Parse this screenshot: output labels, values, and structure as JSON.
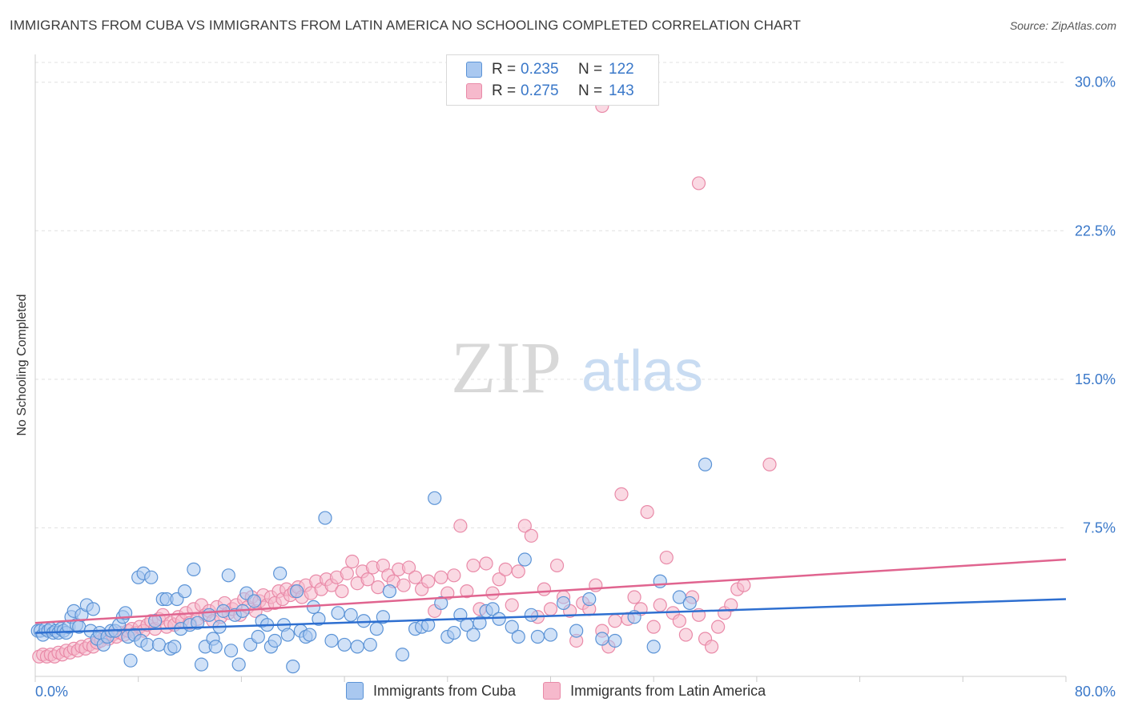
{
  "header": {
    "title": "IMMIGRANTS FROM CUBA VS IMMIGRANTS FROM LATIN AMERICA NO SCHOOLING COMPLETED CORRELATION CHART",
    "source": "Source: ZipAtlas.com"
  },
  "watermark": {
    "zip": "ZIP",
    "atlas": "atlas"
  },
  "legend": {
    "rows": [
      {
        "r_label": "R = ",
        "r_value": "0.235",
        "n_label": "N = ",
        "n_value": "122"
      },
      {
        "r_label": "R = ",
        "r_value": "0.275",
        "n_label": "N = ",
        "n_value": "143"
      }
    ]
  },
  "bottom_legend": {
    "series1": "Immigrants from Cuba",
    "series2": "Immigrants from Latin America"
  },
  "colors": {
    "cuba_fill": "#a9c8f0",
    "cuba_stroke": "#5b93d6",
    "cuba_line": "#2e6fd0",
    "latam_fill": "#f6b9cc",
    "latam_stroke": "#e98aa8",
    "latam_line": "#e0648f",
    "tick_label": "#3a78c9",
    "grid": "#e0e0e0"
  },
  "chart_data": {
    "type": "scatter",
    "title": "IMMIGRANTS FROM CUBA VS IMMIGRANTS FROM LATIN AMERICA NO SCHOOLING COMPLETED CORRELATION CHART",
    "xlabel": "",
    "ylabel": "No Schooling Completed",
    "xlim": [
      0,
      80
    ],
    "ylim": [
      0,
      31
    ],
    "x_tick_labels": [
      "0.0%",
      "80.0%"
    ],
    "y_ticks": [
      7.5,
      15.0,
      22.5,
      30.0
    ],
    "y_tick_labels": [
      "7.5%",
      "15.0%",
      "22.5%",
      "30.0%"
    ],
    "grid": "horizontal dashed",
    "legend_position": "top-center",
    "series": [
      {
        "name": "Immigrants from Cuba",
        "R": 0.235,
        "N": 122,
        "trend": [
          [
            0,
            2.2
          ],
          [
            80,
            3.9
          ]
        ],
        "points": [
          [
            0.2,
            2.3
          ],
          [
            0.4,
            2.3
          ],
          [
            0.6,
            2.1
          ],
          [
            0.8,
            2.4
          ],
          [
            1.0,
            2.3
          ],
          [
            1.2,
            2.4
          ],
          [
            1.4,
            2.2
          ],
          [
            1.6,
            2.3
          ],
          [
            1.8,
            2.2
          ],
          [
            2.0,
            2.4
          ],
          [
            2.2,
            2.3
          ],
          [
            2.4,
            2.2
          ],
          [
            2.6,
            2.5
          ],
          [
            2.8,
            3.0
          ],
          [
            3.0,
            3.3
          ],
          [
            3.2,
            2.6
          ],
          [
            3.4,
            2.5
          ],
          [
            3.6,
            3.1
          ],
          [
            4.0,
            3.6
          ],
          [
            4.3,
            2.3
          ],
          [
            4.5,
            3.4
          ],
          [
            4.8,
            1.9
          ],
          [
            5.0,
            2.2
          ],
          [
            5.3,
            1.6
          ],
          [
            5.6,
            2.0
          ],
          [
            5.9,
            2.3
          ],
          [
            6.2,
            2.3
          ],
          [
            6.5,
            2.6
          ],
          [
            6.8,
            3.0
          ],
          [
            7.0,
            3.2
          ],
          [
            7.2,
            2.0
          ],
          [
            7.4,
            0.8
          ],
          [
            7.7,
            2.1
          ],
          [
            8.0,
            5.0
          ],
          [
            8.2,
            1.8
          ],
          [
            8.4,
            5.2
          ],
          [
            8.7,
            1.6
          ],
          [
            9.0,
            5.0
          ],
          [
            9.3,
            2.8
          ],
          [
            9.6,
            1.6
          ],
          [
            9.9,
            3.9
          ],
          [
            10.2,
            3.9
          ],
          [
            10.5,
            1.4
          ],
          [
            10.8,
            1.5
          ],
          [
            11.0,
            3.9
          ],
          [
            11.3,
            2.4
          ],
          [
            11.6,
            4.3
          ],
          [
            12.0,
            2.6
          ],
          [
            12.3,
            5.4
          ],
          [
            12.6,
            2.7
          ],
          [
            12.9,
            0.6
          ],
          [
            13.2,
            1.5
          ],
          [
            13.5,
            3.1
          ],
          [
            13.8,
            1.9
          ],
          [
            14.0,
            1.5
          ],
          [
            14.3,
            2.5
          ],
          [
            14.6,
            3.3
          ],
          [
            15.0,
            5.1
          ],
          [
            15.2,
            1.3
          ],
          [
            15.5,
            3.1
          ],
          [
            15.8,
            0.6
          ],
          [
            16.1,
            3.3
          ],
          [
            16.4,
            4.2
          ],
          [
            16.7,
            1.6
          ],
          [
            17.0,
            3.8
          ],
          [
            17.3,
            2.0
          ],
          [
            17.6,
            2.8
          ],
          [
            18.0,
            2.6
          ],
          [
            18.3,
            1.5
          ],
          [
            18.6,
            1.8
          ],
          [
            19.0,
            5.2
          ],
          [
            19.3,
            2.6
          ],
          [
            19.6,
            2.1
          ],
          [
            20.0,
            0.5
          ],
          [
            20.3,
            4.3
          ],
          [
            20.6,
            2.3
          ],
          [
            21.0,
            2.0
          ],
          [
            21.3,
            2.1
          ],
          [
            21.6,
            3.5
          ],
          [
            22.0,
            2.9
          ],
          [
            22.5,
            8.0
          ],
          [
            23.0,
            1.8
          ],
          [
            23.5,
            3.2
          ],
          [
            24.0,
            1.6
          ],
          [
            24.5,
            3.1
          ],
          [
            25.0,
            1.5
          ],
          [
            25.5,
            2.8
          ],
          [
            26.0,
            1.6
          ],
          [
            26.5,
            2.4
          ],
          [
            27.0,
            3.0
          ],
          [
            27.5,
            4.3
          ],
          [
            28.5,
            1.1
          ],
          [
            29.5,
            2.4
          ],
          [
            30.0,
            2.5
          ],
          [
            30.5,
            2.6
          ],
          [
            31.0,
            9.0
          ],
          [
            31.5,
            3.7
          ],
          [
            32.0,
            2.0
          ],
          [
            32.5,
            2.2
          ],
          [
            33.0,
            3.1
          ],
          [
            33.5,
            2.6
          ],
          [
            34.0,
            2.1
          ],
          [
            34.5,
            2.7
          ],
          [
            35.0,
            3.3
          ],
          [
            35.5,
            3.4
          ],
          [
            36.0,
            2.9
          ],
          [
            37.0,
            2.5
          ],
          [
            37.5,
            2.0
          ],
          [
            38.0,
            5.9
          ],
          [
            38.5,
            3.1
          ],
          [
            39.0,
            2.0
          ],
          [
            40.0,
            2.1
          ],
          [
            41.0,
            3.7
          ],
          [
            42.0,
            2.3
          ],
          [
            43.0,
            3.9
          ],
          [
            44.0,
            1.9
          ],
          [
            45.0,
            1.8
          ],
          [
            46.5,
            3.0
          ],
          [
            48.0,
            1.5
          ],
          [
            48.5,
            4.8
          ],
          [
            50.0,
            4.0
          ],
          [
            50.8,
            3.7
          ],
          [
            52.0,
            10.7
          ]
        ]
      },
      {
        "name": "Immigrants from Latin America",
        "R": 0.275,
        "N": 143,
        "trend": [
          [
            0,
            2.7
          ],
          [
            80,
            5.9
          ]
        ],
        "points": [
          [
            0.3,
            1.0
          ],
          [
            0.6,
            1.1
          ],
          [
            0.9,
            1.0
          ],
          [
            1.2,
            1.1
          ],
          [
            1.5,
            1.0
          ],
          [
            1.8,
            1.2
          ],
          [
            2.1,
            1.1
          ],
          [
            2.4,
            1.3
          ],
          [
            2.7,
            1.2
          ],
          [
            3.0,
            1.4
          ],
          [
            3.3,
            1.3
          ],
          [
            3.6,
            1.5
          ],
          [
            3.9,
            1.4
          ],
          [
            4.2,
            1.6
          ],
          [
            4.5,
            1.5
          ],
          [
            4.8,
            1.7
          ],
          [
            5.1,
            1.8
          ],
          [
            5.4,
            2.0
          ],
          [
            5.7,
            1.9
          ],
          [
            6.0,
            2.1
          ],
          [
            6.3,
            2.0
          ],
          [
            6.6,
            2.2
          ],
          [
            6.9,
            2.1
          ],
          [
            7.2,
            2.3
          ],
          [
            7.5,
            2.4
          ],
          [
            7.8,
            2.2
          ],
          [
            8.1,
            2.5
          ],
          [
            8.4,
            2.3
          ],
          [
            8.7,
            2.6
          ],
          [
            9.0,
            2.8
          ],
          [
            9.3,
            2.4
          ],
          [
            9.6,
            2.9
          ],
          [
            9.9,
            3.1
          ],
          [
            10.2,
            2.5
          ],
          [
            10.5,
            2.7
          ],
          [
            10.8,
            2.6
          ],
          [
            11.1,
            3.0
          ],
          [
            11.4,
            2.8
          ],
          [
            11.7,
            3.2
          ],
          [
            12.0,
            2.7
          ],
          [
            12.3,
            3.4
          ],
          [
            12.6,
            2.9
          ],
          [
            12.9,
            3.6
          ],
          [
            13.2,
            3.1
          ],
          [
            13.5,
            3.3
          ],
          [
            13.8,
            2.8
          ],
          [
            14.1,
            3.5
          ],
          [
            14.4,
            3.0
          ],
          [
            14.7,
            3.7
          ],
          [
            15.0,
            3.2
          ],
          [
            15.3,
            3.4
          ],
          [
            15.6,
            3.6
          ],
          [
            15.9,
            3.1
          ],
          [
            16.2,
            3.9
          ],
          [
            16.5,
            3.5
          ],
          [
            16.8,
            4.0
          ],
          [
            17.1,
            3.3
          ],
          [
            17.4,
            3.8
          ],
          [
            17.7,
            4.1
          ],
          [
            18.0,
            3.6
          ],
          [
            18.3,
            4.0
          ],
          [
            18.6,
            3.7
          ],
          [
            18.9,
            4.3
          ],
          [
            19.2,
            3.9
          ],
          [
            19.5,
            4.4
          ],
          [
            19.8,
            4.1
          ],
          [
            20.1,
            4.3
          ],
          [
            20.4,
            4.5
          ],
          [
            20.7,
            4.0
          ],
          [
            21.0,
            4.6
          ],
          [
            21.4,
            4.2
          ],
          [
            21.8,
            4.8
          ],
          [
            22.2,
            4.4
          ],
          [
            22.6,
            4.9
          ],
          [
            23.0,
            4.6
          ],
          [
            23.4,
            5.0
          ],
          [
            23.8,
            4.3
          ],
          [
            24.2,
            5.2
          ],
          [
            24.6,
            5.8
          ],
          [
            25.0,
            4.7
          ],
          [
            25.4,
            5.3
          ],
          [
            25.8,
            4.9
          ],
          [
            26.2,
            5.5
          ],
          [
            26.6,
            4.5
          ],
          [
            27.0,
            5.6
          ],
          [
            27.4,
            5.1
          ],
          [
            27.8,
            4.8
          ],
          [
            28.2,
            5.4
          ],
          [
            28.6,
            4.6
          ],
          [
            29.0,
            5.5
          ],
          [
            29.5,
            5.0
          ],
          [
            30.0,
            4.4
          ],
          [
            30.5,
            4.8
          ],
          [
            31.0,
            3.3
          ],
          [
            31.5,
            5.0
          ],
          [
            32.0,
            4.2
          ],
          [
            32.5,
            5.1
          ],
          [
            33.0,
            7.6
          ],
          [
            33.5,
            4.3
          ],
          [
            34.0,
            5.6
          ],
          [
            34.5,
            3.4
          ],
          [
            35.0,
            5.7
          ],
          [
            35.5,
            4.2
          ],
          [
            36.0,
            4.9
          ],
          [
            36.5,
            5.4
          ],
          [
            37.0,
            3.6
          ],
          [
            37.5,
            5.3
          ],
          [
            38.0,
            7.6
          ],
          [
            38.5,
            7.1
          ],
          [
            39.0,
            3.0
          ],
          [
            39.5,
            4.4
          ],
          [
            40.0,
            3.4
          ],
          [
            40.5,
            5.6
          ],
          [
            41.0,
            4.0
          ],
          [
            41.5,
            3.3
          ],
          [
            42.0,
            1.8
          ],
          [
            42.5,
            3.7
          ],
          [
            43.0,
            3.4
          ],
          [
            43.5,
            4.6
          ],
          [
            44.0,
            2.3
          ],
          [
            44.5,
            1.5
          ],
          [
            45.0,
            2.8
          ],
          [
            45.5,
            9.2
          ],
          [
            46.0,
            2.9
          ],
          [
            46.5,
            4.0
          ],
          [
            47.0,
            3.4
          ],
          [
            47.5,
            8.3
          ],
          [
            48.0,
            2.5
          ],
          [
            48.5,
            3.6
          ],
          [
            49.0,
            6.0
          ],
          [
            49.5,
            3.2
          ],
          [
            50.0,
            2.8
          ],
          [
            50.5,
            2.1
          ],
          [
            51.0,
            4.0
          ],
          [
            51.5,
            3.1
          ],
          [
            52.0,
            1.9
          ],
          [
            52.5,
            1.5
          ],
          [
            53.0,
            2.5
          ],
          [
            53.5,
            3.2
          ],
          [
            54.0,
            3.6
          ],
          [
            54.5,
            4.4
          ],
          [
            55.0,
            4.6
          ],
          [
            57.0,
            10.7
          ],
          [
            44.0,
            28.8
          ],
          [
            51.5,
            24.9
          ]
        ]
      }
    ]
  }
}
